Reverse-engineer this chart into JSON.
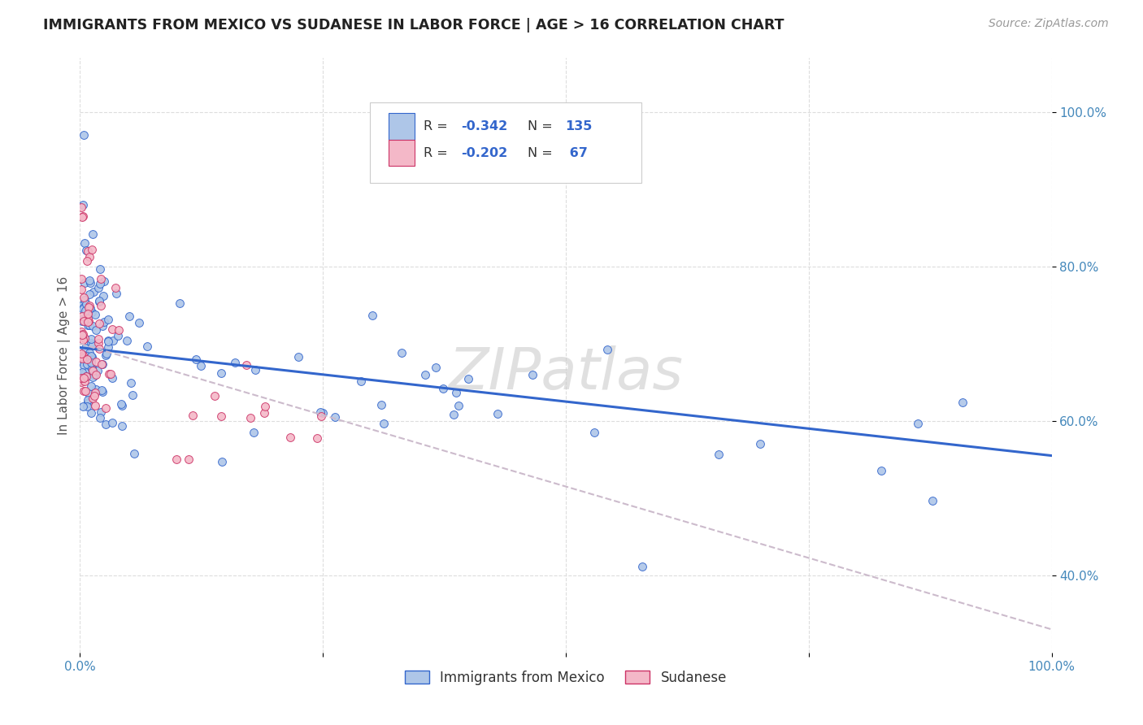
{
  "title": "IMMIGRANTS FROM MEXICO VS SUDANESE IN LABOR FORCE | AGE > 16 CORRELATION CHART",
  "source_text": "Source: ZipAtlas.com",
  "ylabel": "In Labor Force | Age > 16",
  "xlim": [
    0.0,
    1.0
  ],
  "ylim": [
    0.3,
    1.07
  ],
  "ytick_labels": [
    "40.0%",
    "60.0%",
    "80.0%",
    "100.0%"
  ],
  "ytick_positions": [
    0.4,
    0.6,
    0.8,
    1.0
  ],
  "legend_r1": "-0.342",
  "legend_n1": "135",
  "legend_r2": "-0.202",
  "legend_n2": " 67",
  "color_mexico": "#aec6e8",
  "color_sudanese": "#f4b8c8",
  "color_line_mexico": "#3366cc",
  "color_line_sudanese": "#cc3366",
  "watermark": "ZIPatlas",
  "background_color": "#ffffff",
  "grid_color": "#dddddd",
  "trend_mexico_start": 0.695,
  "trend_mexico_end": 0.555,
  "trend_sudanese_start": 0.7,
  "trend_sudanese_end": 0.33
}
